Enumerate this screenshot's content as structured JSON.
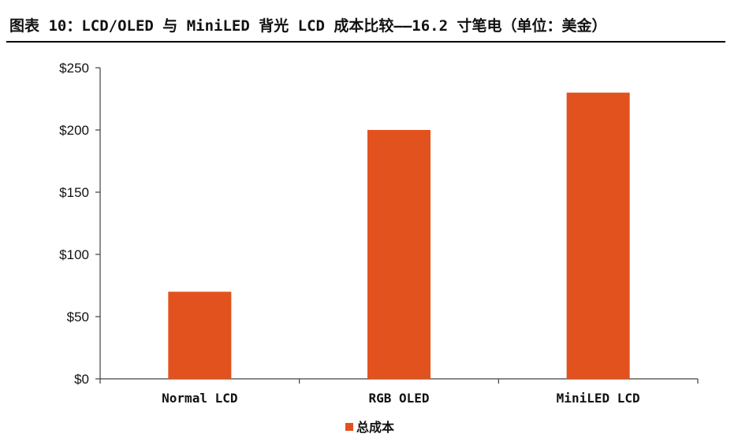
{
  "title": "图表 10：LCD/OLED 与 MiniLED 背光 LCD 成本比较——16.2 寸笔电（单位：美金）",
  "colors": {
    "bar": "#E2521E",
    "axis": "#404040",
    "text": "#111111"
  },
  "chart_data": {
    "type": "bar",
    "categories": [
      "Normal LCD",
      "RGB OLED",
      "MiniLED LCD"
    ],
    "series": [
      {
        "name": "总成本",
        "values": [
          70,
          200,
          230
        ]
      }
    ],
    "ylim": [
      0,
      250
    ],
    "yticks": [
      0,
      50,
      100,
      150,
      200,
      250
    ],
    "ytick_labels": [
      "$0",
      "$50",
      "$100",
      "$150",
      "$200",
      "$250"
    ],
    "grid": false,
    "legend_position": "bottom-center"
  }
}
